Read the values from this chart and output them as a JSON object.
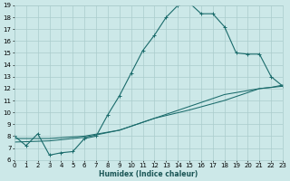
{
  "xlabel": "Humidex (Indice chaleur)",
  "bg_color": "#cce8e8",
  "grid_color": "#aacccc",
  "line_color": "#1a6b6b",
  "xmin": 0,
  "xmax": 23,
  "ymin": 6,
  "ymax": 19,
  "line1_x": [
    0,
    1,
    2,
    3,
    4,
    5,
    6,
    7,
    8,
    9,
    10,
    11,
    12,
    13,
    14,
    15,
    16,
    17,
    18,
    19,
    20,
    21,
    22,
    23
  ],
  "line1_y": [
    8.0,
    7.2,
    8.2,
    6.4,
    6.6,
    6.7,
    7.8,
    8.0,
    9.8,
    11.4,
    13.3,
    15.2,
    16.5,
    18.0,
    19.0,
    19.2,
    18.3,
    18.3,
    17.2,
    15.0,
    14.9,
    14.9,
    13.0,
    12.2
  ],
  "line2_x": [
    0,
    3,
    6,
    9,
    12,
    15,
    18,
    21,
    22,
    23
  ],
  "line2_y": [
    7.8,
    7.8,
    8.0,
    8.5,
    9.5,
    10.2,
    11.0,
    12.0,
    12.1,
    12.2
  ],
  "line3_x": [
    0,
    3,
    6,
    9,
    12,
    15,
    18,
    21,
    22,
    23
  ],
  "line3_y": [
    7.5,
    7.6,
    7.9,
    8.5,
    9.5,
    10.5,
    11.5,
    12.0,
    12.1,
    12.3
  ]
}
